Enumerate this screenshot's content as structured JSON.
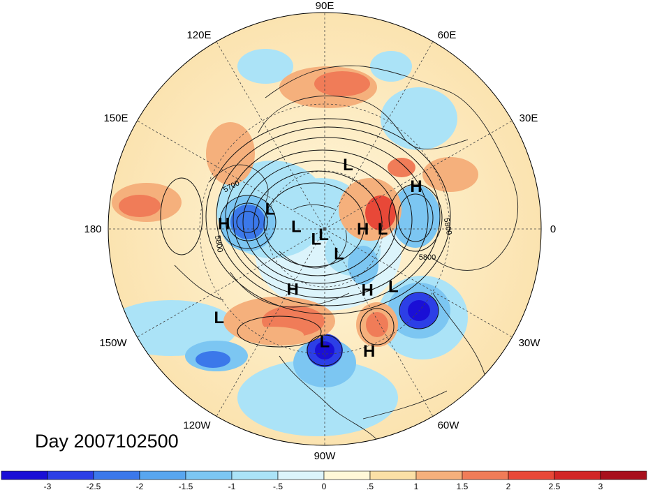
{
  "title": "Day 2007102500",
  "longitude_labels": [
    "90E",
    "60E",
    "30E",
    "0",
    "30W",
    "60W",
    "90W",
    "120W",
    "150W",
    "180",
    "150E",
    "120E"
  ],
  "pressure_centers": [
    {
      "type": "L",
      "lon": 70,
      "lat": 55
    },
    {
      "type": "L",
      "lon": 160,
      "lat": 60
    },
    {
      "type": "H",
      "lon": 177,
      "lat": 40
    },
    {
      "type": "L",
      "lon": 175,
      "lat": 75
    },
    {
      "type": "L",
      "lon": -130,
      "lat": 83
    },
    {
      "type": "L",
      "lon": -100,
      "lat": 87
    },
    {
      "type": "L",
      "lon": -60,
      "lat": 75
    },
    {
      "type": "H",
      "lon": 0,
      "lat": 70
    },
    {
      "type": "L",
      "lon": 0,
      "lat": 60
    },
    {
      "type": "H",
      "lon": 25,
      "lat": 40
    },
    {
      "type": "H",
      "lon": -118,
      "lat": 55
    },
    {
      "type": "H",
      "lon": -55,
      "lat": 52
    },
    {
      "type": "L",
      "lon": -40,
      "lat": 45
    },
    {
      "type": "L",
      "lon": -90,
      "lat": 35
    },
    {
      "type": "H",
      "lon": -70,
      "lat": 28
    },
    {
      "type": "L",
      "lon": -140,
      "lat": 25
    }
  ],
  "contour_labels": [
    {
      "text": "5700",
      "x": 333,
      "y": 270,
      "rot": -28
    },
    {
      "text": "5800",
      "x": 310,
      "y": 350,
      "rot": 80
    },
    {
      "text": "5800",
      "x": 612,
      "y": 372,
      "rot": 0
    },
    {
      "text": "5800",
      "x": 638,
      "y": 325,
      "rot": 80
    }
  ],
  "colorbar": {
    "ticks": [
      "-3",
      "-2.5",
      "-2",
      "-1.5",
      "-1",
      "-.5",
      "0",
      ".5",
      "1",
      "1.5",
      "2",
      "2.5",
      "3"
    ],
    "colors": [
      "#1a0fd6",
      "#2c3fe6",
      "#3b78ea",
      "#58a6ef",
      "#7cc6f2",
      "#abe3f7",
      "#dcf4fb",
      "#fff8d8",
      "#fbe0a6",
      "#f5b07c",
      "#f07c58",
      "#e84838",
      "#d22626",
      "#a80f1c"
    ]
  },
  "colors": {
    "dashed_grid": "#444444",
    "contour": "#111111",
    "coast": "#222222"
  }
}
